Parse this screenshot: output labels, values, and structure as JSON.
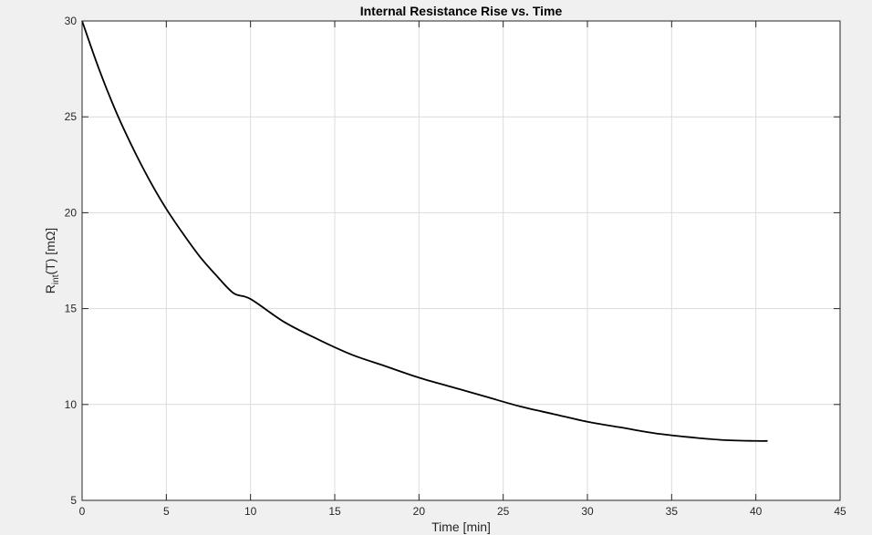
{
  "chart_data": {
    "type": "line",
    "title": "Internal Resistance Rise vs. Time",
    "xlabel": "Time [min]",
    "ylabel": {
      "main": "R",
      "subscript": "int",
      "rest": "(T)  [mΩ]"
    },
    "xlim": [
      0,
      45
    ],
    "ylim": [
      5,
      30
    ],
    "xticks": [
      0,
      5,
      10,
      15,
      20,
      25,
      30,
      35,
      40,
      45
    ],
    "yticks": [
      5,
      10,
      15,
      20,
      25,
      30
    ],
    "grid": true,
    "colors": {
      "background": "#f0f0f0",
      "plot_area": "#ffffff",
      "grid": "#dcdcdc",
      "axes": "#262626",
      "line": "#000000"
    },
    "series": [
      {
        "x": [
          0,
          1,
          2,
          3,
          4,
          5,
          6,
          7,
          8,
          9,
          10,
          12,
          14,
          16,
          18,
          20,
          22,
          24,
          26,
          28,
          30,
          32,
          34,
          36,
          38,
          40,
          40.7
        ],
        "y": [
          30,
          27.5,
          25.3,
          23.4,
          21.7,
          20.2,
          18.9,
          17.7,
          16.7,
          15.8,
          15.5,
          14.3,
          13.4,
          12.6,
          12.0,
          11.4,
          10.9,
          10.4,
          9.9,
          9.5,
          9.1,
          8.8,
          8.5,
          8.3,
          8.15,
          8.1,
          8.1
        ]
      }
    ]
  }
}
